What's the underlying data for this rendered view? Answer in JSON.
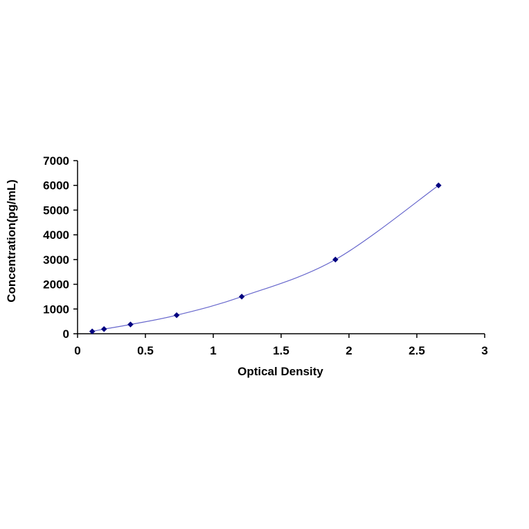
{
  "chart_data": {
    "type": "scatter",
    "title": "",
    "xlabel": "Optical Density",
    "ylabel": "Concentration(pg/mL)",
    "xlim": [
      0,
      3
    ],
    "ylim": [
      0,
      7000
    ],
    "x_ticks": [
      0,
      0.5,
      1,
      1.5,
      2,
      2.5,
      3
    ],
    "x_tick_labels": [
      "0",
      "0.5",
      "1",
      "1.5",
      "2",
      "2.5",
      "3"
    ],
    "y_ticks": [
      0,
      1000,
      2000,
      3000,
      4000,
      5000,
      6000,
      7000
    ],
    "y_tick_labels": [
      "0",
      "1000",
      "2000",
      "3000",
      "4000",
      "5000",
      "6000",
      "7000"
    ],
    "grid": false,
    "legend": "none",
    "series": [
      {
        "x": [
          0.108,
          0.195,
          0.39,
          0.73,
          1.21,
          1.9,
          2.66
        ],
        "y": [
          94,
          188,
          375,
          750,
          1500,
          3000,
          6000
        ],
        "marker": "diamond",
        "color": "#000080",
        "fit_line": true,
        "line_color": "#6666cc"
      }
    ]
  }
}
